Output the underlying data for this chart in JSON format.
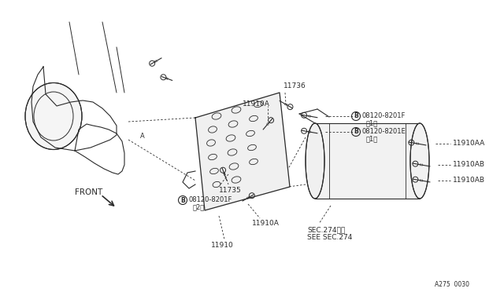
{
  "bg_color": "#ffffff",
  "line_color": "#2a2a2a",
  "fig_width": 6.4,
  "fig_height": 3.72,
  "dpi": 100,
  "labels": {
    "11910": "11910",
    "11736": "11736",
    "11910A": "11910A",
    "11735": "11735",
    "boltF1": "08120-8201F",
    "boltF1_qty": "（1）",
    "boltE1": "08120-8201E",
    "boltE1_qty": "（1）",
    "boltF2": "08120-8201F",
    "boltF2_qty": "（2）",
    "11910AA": "11910AA",
    "11910AB": "11910AB",
    "sec274a": "SEC.274参照",
    "sec274b": "SEE SEC.274",
    "ref": "A275  0030",
    "front": "FRONT"
  }
}
